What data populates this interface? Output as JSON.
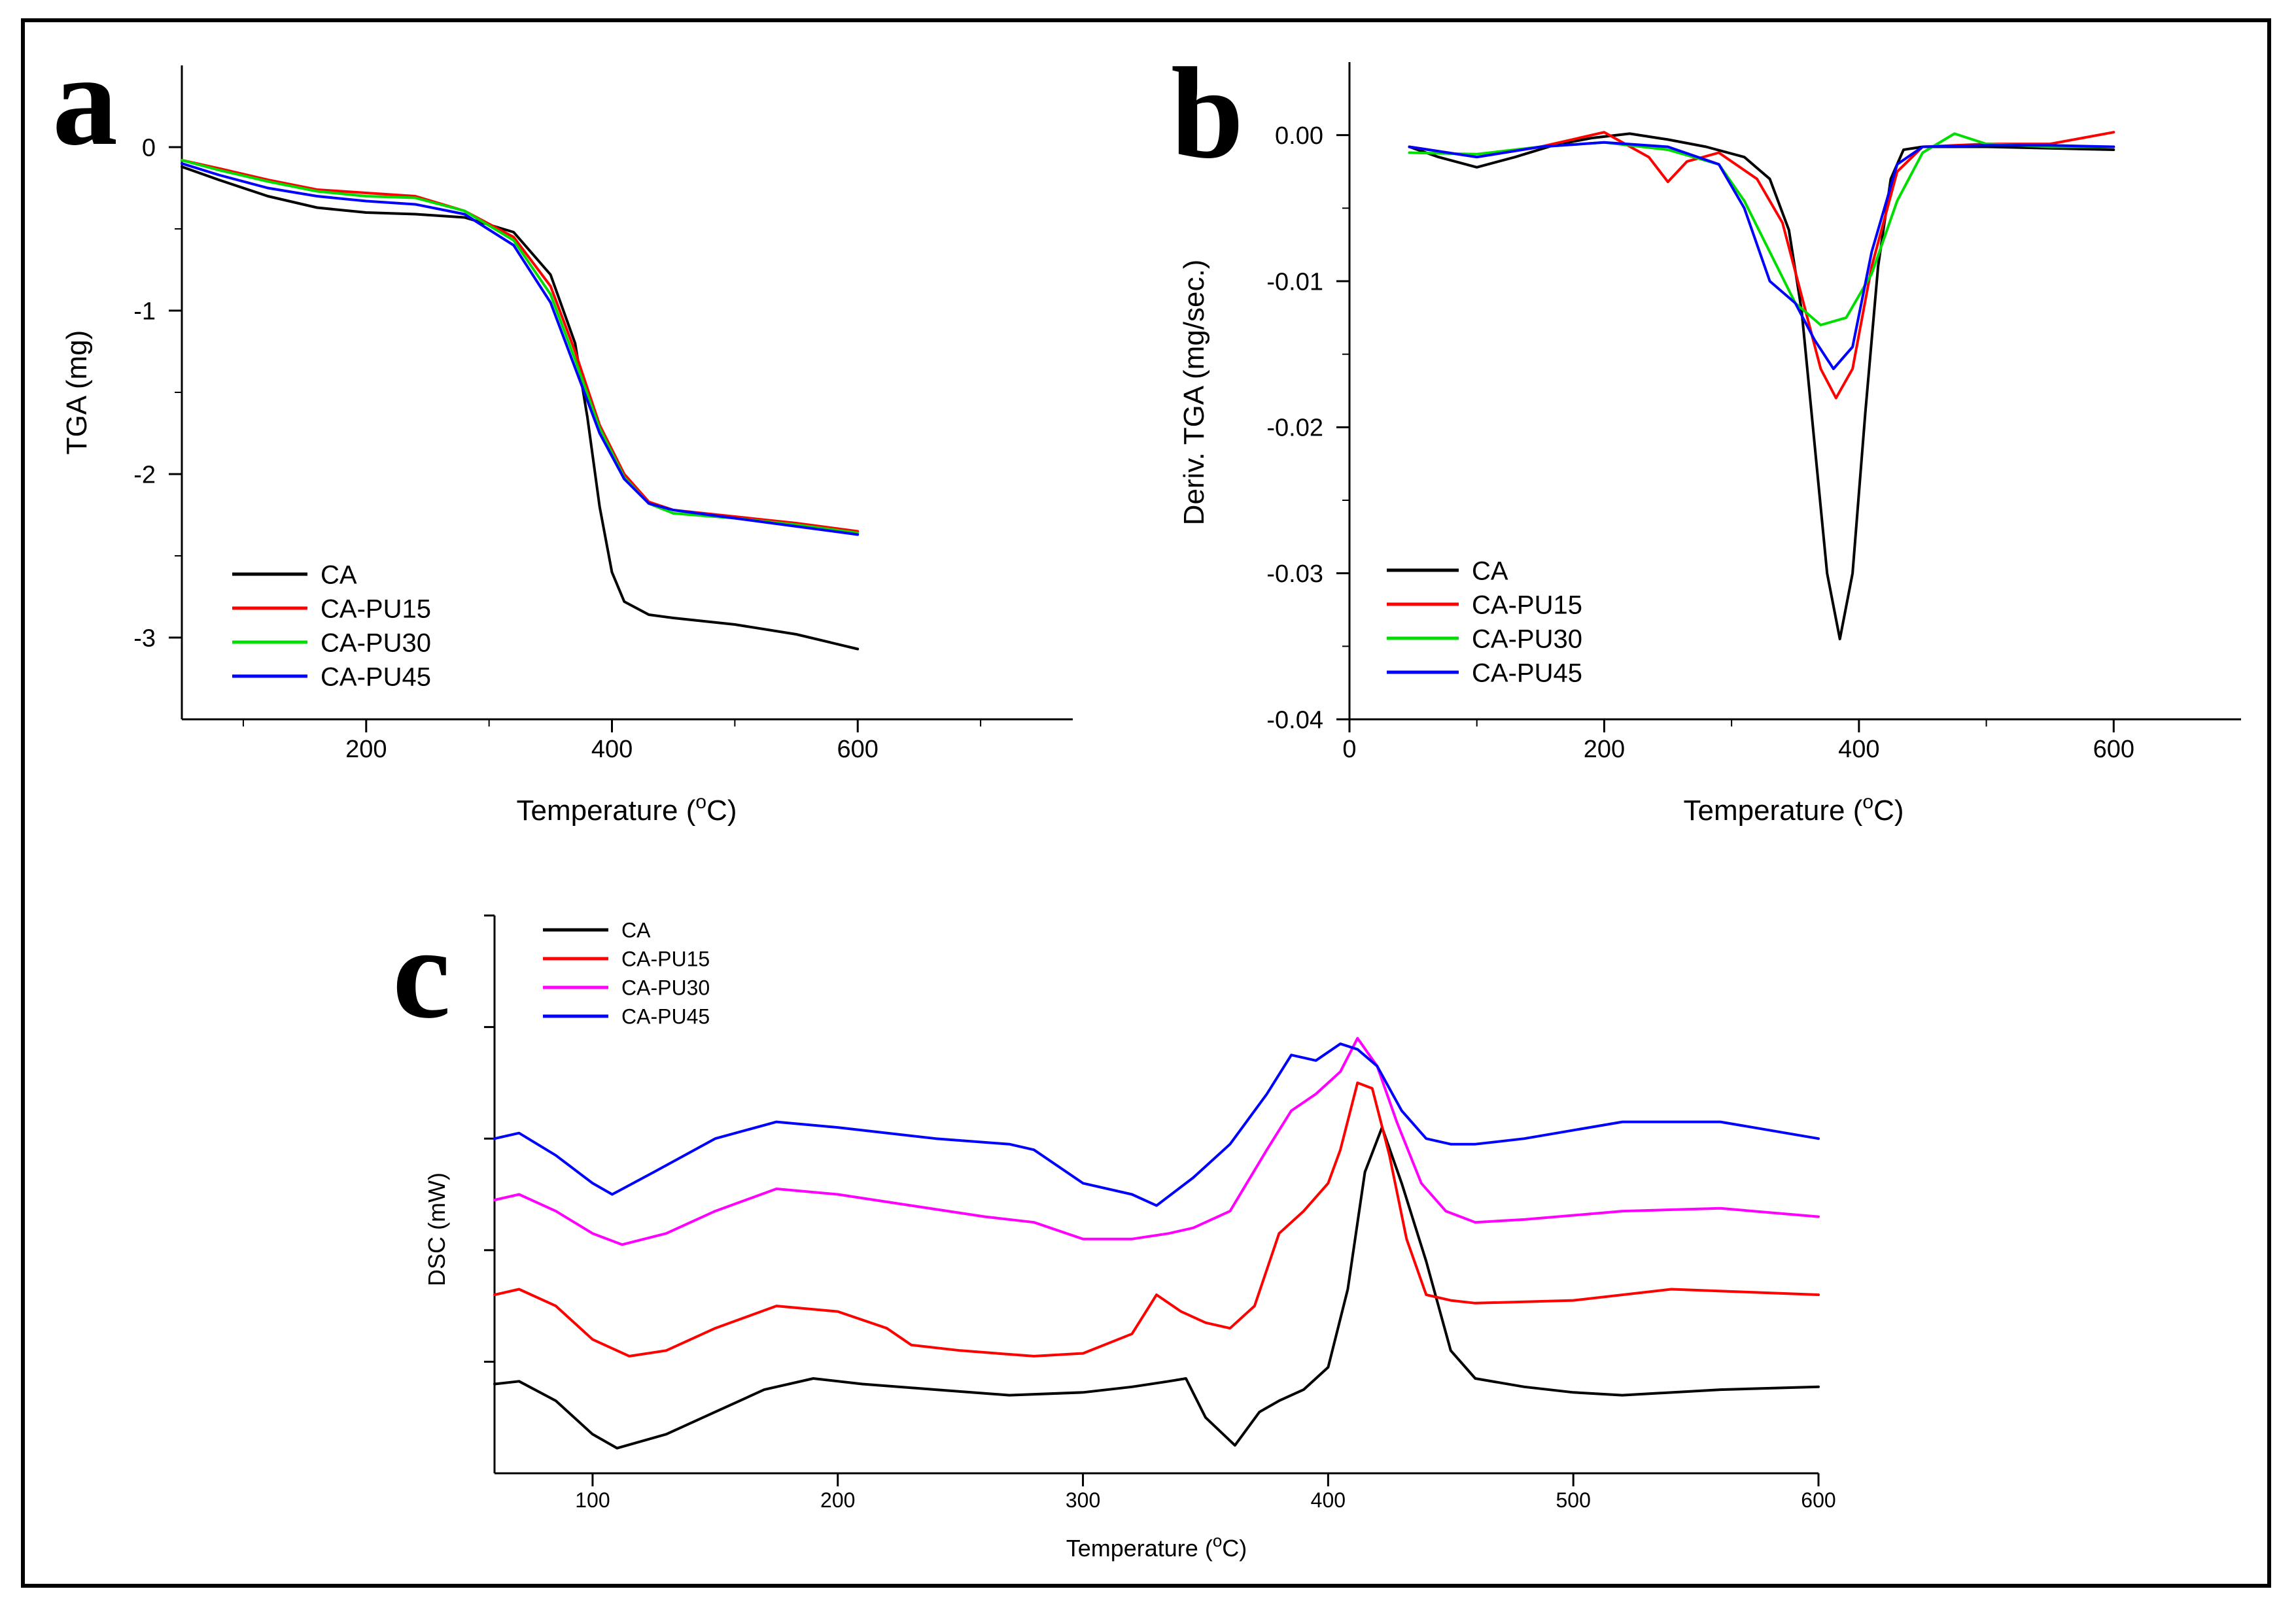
{
  "chart_data": [
    {
      "type": "line",
      "panel_label": "a",
      "xlabel_prefix": "Temperature (",
      "xlabel_unit": "C)",
      "xlabel_degree": "o",
      "ylabel": "TGA (mg)",
      "xlim": [
        50,
        775
      ],
      "ylim": [
        -3.5,
        0.5
      ],
      "xticks": [
        200,
        400,
        600
      ],
      "yticks": [
        0,
        -1,
        -2,
        -3
      ],
      "legend": [
        "CA",
        "CA-PU15",
        "CA-PU30",
        "CA-PU45"
      ],
      "series": [
        {
          "name": "CA",
          "color": "#000000",
          "x": [
            50,
            80,
            120,
            160,
            200,
            240,
            280,
            320,
            350,
            370,
            380,
            390,
            400,
            410,
            430,
            450,
            500,
            550,
            600
          ],
          "y": [
            -0.12,
            -0.2,
            -0.3,
            -0.37,
            -0.4,
            -0.41,
            -0.43,
            -0.52,
            -0.78,
            -1.2,
            -1.65,
            -2.2,
            -2.6,
            -2.78,
            -2.86,
            -2.88,
            -2.92,
            -2.98,
            -3.07
          ]
        },
        {
          "name": "CA-PU15",
          "color": "#ff0000",
          "x": [
            50,
            80,
            120,
            160,
            200,
            240,
            280,
            320,
            350,
            370,
            390,
            410,
            430,
            450,
            500,
            550,
            600
          ],
          "y": [
            -0.08,
            -0.13,
            -0.2,
            -0.26,
            -0.28,
            -0.3,
            -0.39,
            -0.55,
            -0.85,
            -1.25,
            -1.7,
            -2.0,
            -2.17,
            -2.22,
            -2.26,
            -2.3,
            -2.35
          ]
        },
        {
          "name": "CA-PU30",
          "color": "#00dd00",
          "x": [
            50,
            80,
            120,
            160,
            200,
            240,
            280,
            320,
            350,
            370,
            390,
            410,
            430,
            450,
            500,
            550,
            600
          ],
          "y": [
            -0.08,
            -0.14,
            -0.21,
            -0.27,
            -0.3,
            -0.31,
            -0.39,
            -0.57,
            -0.9,
            -1.3,
            -1.72,
            -2.02,
            -2.18,
            -2.24,
            -2.27,
            -2.31,
            -2.36
          ]
        },
        {
          "name": "CA-PU45",
          "color": "#0000ff",
          "x": [
            50,
            80,
            120,
            160,
            200,
            240,
            280,
            320,
            350,
            370,
            390,
            410,
            430,
            450,
            500,
            550,
            600
          ],
          "y": [
            -0.1,
            -0.17,
            -0.25,
            -0.3,
            -0.33,
            -0.35,
            -0.41,
            -0.6,
            -0.95,
            -1.35,
            -1.75,
            -2.03,
            -2.18,
            -2.22,
            -2.27,
            -2.32,
            -2.37
          ]
        }
      ]
    },
    {
      "type": "line",
      "panel_label": "b",
      "xlabel_prefix": "Temperature (",
      "xlabel_unit": "C)",
      "xlabel_degree": "o",
      "ylabel": "Deriv. TGA (mg/sec.)",
      "xlim": [
        0,
        700
      ],
      "ylim": [
        -0.04,
        0.005
      ],
      "xticks": [
        0,
        200,
        400,
        600
      ],
      "yticks": [
        0.0,
        -0.01,
        -0.02,
        -0.03,
        -0.04
      ],
      "ytick_labels": [
        "0.00",
        "-0.01",
        "-0.02",
        "-0.03",
        "-0.04"
      ],
      "legend": [
        "CA",
        "CA-PU15",
        "CA-PU30",
        "CA-PU45"
      ],
      "series": [
        {
          "name": "CA",
          "color": "#000000",
          "x": [
            47,
            70,
            100,
            130,
            160,
            190,
            220,
            250,
            280,
            310,
            330,
            345,
            355,
            365,
            375,
            385,
            395,
            405,
            415,
            425,
            435,
            450,
            500,
            550,
            600
          ],
          "y": [
            -0.0008,
            -0.0015,
            -0.0022,
            -0.0015,
            -0.0007,
            -0.0002,
            0.0001,
            -0.0003,
            -0.0008,
            -0.0015,
            -0.003,
            -0.0065,
            -0.012,
            -0.021,
            -0.03,
            -0.0345,
            -0.03,
            -0.019,
            -0.009,
            -0.003,
            -0.001,
            -0.0008,
            -0.0008,
            -0.0009,
            -0.001
          ]
        },
        {
          "name": "CA-PU15",
          "color": "#ff0000",
          "x": [
            47,
            100,
            150,
            200,
            235,
            250,
            265,
            290,
            320,
            340,
            355,
            370,
            382,
            395,
            410,
            430,
            450,
            500,
            550,
            600
          ],
          "y": [
            -0.0008,
            -0.0015,
            -0.0008,
            0.0002,
            -0.0015,
            -0.0032,
            -0.0018,
            -0.0012,
            -0.003,
            -0.006,
            -0.011,
            -0.016,
            -0.018,
            -0.016,
            -0.009,
            -0.0025,
            -0.0008,
            -0.0006,
            -0.0006,
            0.0002
          ]
        },
        {
          "name": "CA-PU30",
          "color": "#00dd00",
          "x": [
            47,
            100,
            150,
            200,
            250,
            290,
            310,
            330,
            350,
            370,
            390,
            410,
            430,
            450,
            475,
            500,
            550,
            600
          ],
          "y": [
            -0.0012,
            -0.0013,
            -0.0008,
            -0.0005,
            -0.001,
            -0.002,
            -0.0045,
            -0.008,
            -0.0115,
            -0.013,
            -0.0125,
            -0.0095,
            -0.0045,
            -0.0012,
            0.0001,
            -0.0006,
            -0.0008,
            -0.0008
          ]
        },
        {
          "name": "CA-PU45",
          "color": "#0000ff",
          "x": [
            47,
            100,
            150,
            200,
            250,
            290,
            310,
            330,
            350,
            365,
            380,
            395,
            410,
            430,
            450,
            500,
            550,
            600
          ],
          "y": [
            -0.0008,
            -0.0015,
            -0.0008,
            -0.0005,
            -0.0008,
            -0.002,
            -0.005,
            -0.01,
            -0.0115,
            -0.014,
            -0.016,
            -0.0145,
            -0.008,
            -0.002,
            -0.0008,
            -0.0007,
            -0.0007,
            -0.0008
          ]
        }
      ]
    },
    {
      "type": "line",
      "panel_label": "c",
      "xlabel_prefix": "Temperature (",
      "xlabel_unit": "C)",
      "xlabel_degree": "o",
      "ylabel": "DSC (mW)",
      "xlim": [
        60,
        600
      ],
      "ylim": [
        0,
        1
      ],
      "xticks": [
        100,
        200,
        300,
        400,
        500,
        600
      ],
      "yticks_unlabeled": [
        0.2,
        0.4,
        0.6,
        0.8,
        1.0
      ],
      "legend": [
        "CA",
        "CA-PU15",
        "CA-PU30",
        "CA-PU45"
      ],
      "series": [
        {
          "name": "CA",
          "color": "#000000",
          "x": [
            60,
            70,
            85,
            100,
            110,
            130,
            150,
            170,
            190,
            210,
            240,
            270,
            300,
            320,
            335,
            342,
            350,
            362,
            372,
            380,
            390,
            400,
            408,
            415,
            422,
            430,
            440,
            450,
            460,
            480,
            500,
            520,
            560,
            600
          ],
          "y": [
            0.16,
            0.165,
            0.13,
            0.07,
            0.045,
            0.07,
            0.11,
            0.15,
            0.17,
            0.16,
            0.15,
            0.14,
            0.145,
            0.155,
            0.165,
            0.17,
            0.1,
            0.05,
            0.11,
            0.13,
            0.15,
            0.19,
            0.33,
            0.54,
            0.62,
            0.52,
            0.38,
            0.22,
            0.17,
            0.155,
            0.145,
            0.14,
            0.15,
            0.155
          ]
        },
        {
          "name": "CA-PU15",
          "color": "#ff0000",
          "x": [
            60,
            70,
            85,
            100,
            115,
            130,
            150,
            175,
            200,
            220,
            230,
            250,
            280,
            300,
            320,
            330,
            340,
            350,
            360,
            370,
            380,
            390,
            400,
            405,
            412,
            418,
            425,
            432,
            440,
            450,
            460,
            500,
            540,
            570,
            600
          ],
          "y": [
            0.32,
            0.33,
            0.3,
            0.24,
            0.21,
            0.22,
            0.26,
            0.3,
            0.29,
            0.26,
            0.23,
            0.22,
            0.21,
            0.215,
            0.25,
            0.32,
            0.29,
            0.27,
            0.26,
            0.3,
            0.43,
            0.47,
            0.52,
            0.58,
            0.7,
            0.69,
            0.57,
            0.42,
            0.32,
            0.31,
            0.305,
            0.31,
            0.33,
            0.325,
            0.32
          ]
        },
        {
          "name": "CA-PU30",
          "color": "#ff00ff",
          "x": [
            60,
            70,
            85,
            100,
            112,
            130,
            150,
            175,
            200,
            230,
            260,
            280,
            300,
            320,
            335,
            345,
            360,
            375,
            385,
            395,
            405,
            412,
            420,
            428,
            438,
            448,
            460,
            480,
            520,
            560,
            600
          ],
          "y": [
            0.49,
            0.5,
            0.47,
            0.43,
            0.41,
            0.43,
            0.47,
            0.51,
            0.5,
            0.48,
            0.46,
            0.45,
            0.42,
            0.42,
            0.43,
            0.44,
            0.47,
            0.58,
            0.65,
            0.68,
            0.72,
            0.78,
            0.73,
            0.63,
            0.52,
            0.47,
            0.45,
            0.455,
            0.47,
            0.475,
            0.46
          ]
        },
        {
          "name": "CA-PU45",
          "color": "#0000ff",
          "x": [
            60,
            70,
            85,
            100,
            108,
            125,
            150,
            175,
            200,
            240,
            270,
            280,
            300,
            320,
            330,
            345,
            360,
            375,
            385,
            395,
            405,
            412,
            420,
            430,
            440,
            450,
            460,
            480,
            520,
            560,
            600
          ],
          "y": [
            0.6,
            0.61,
            0.57,
            0.52,
            0.5,
            0.54,
            0.6,
            0.63,
            0.62,
            0.6,
            0.59,
            0.58,
            0.52,
            0.5,
            0.48,
            0.53,
            0.59,
            0.68,
            0.75,
            0.74,
            0.77,
            0.76,
            0.73,
            0.65,
            0.6,
            0.59,
            0.59,
            0.6,
            0.63,
            0.63,
            0.6
          ]
        }
      ]
    }
  ]
}
